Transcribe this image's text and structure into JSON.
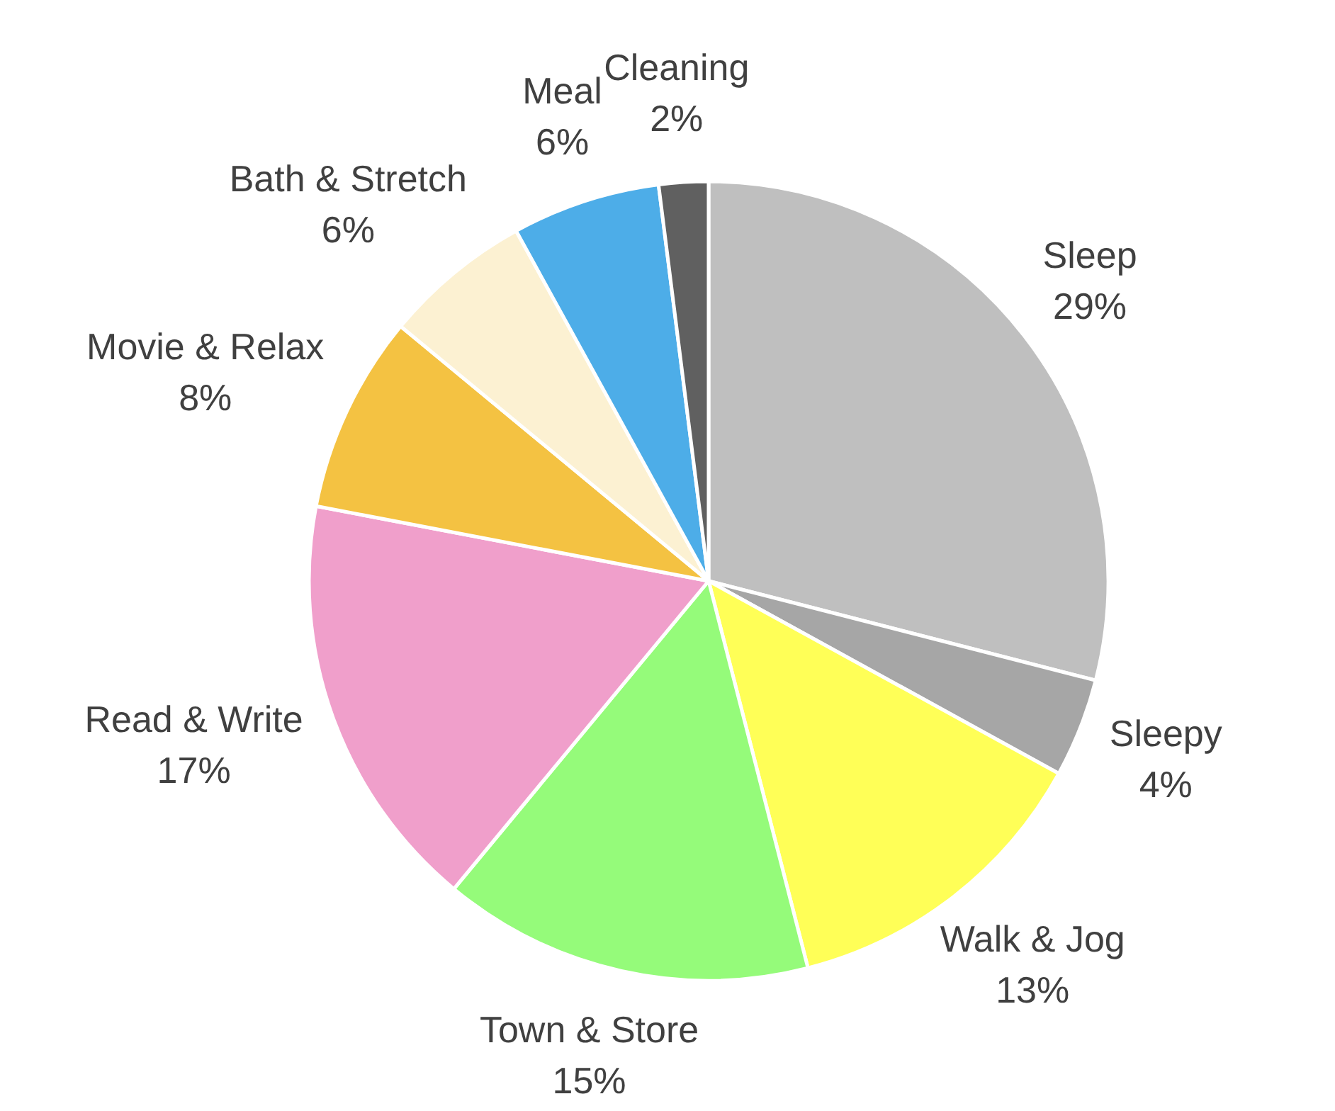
{
  "chart_data": {
    "type": "pie",
    "categories": [
      "Sleep",
      "Sleepy",
      "Walk & Jog",
      "Town & Store",
      "Read & Write",
      "Movie & Relax",
      "Bath & Stretch",
      "Meal",
      "Cleaning"
    ],
    "values": [
      29,
      4,
      13,
      15,
      17,
      8,
      6,
      6,
      2
    ],
    "colors": [
      "#bfbfbf",
      "#a6a6a6",
      "#ffff57",
      "#95fb7a",
      "#f09fcb",
      "#f4c242",
      "#fcf1d2",
      "#4dade8",
      "#606060"
    ],
    "value_labels": [
      "29%",
      "4%",
      "13%",
      "15%",
      "17%",
      "8%",
      "6%",
      "6%",
      "2%"
    ]
  }
}
